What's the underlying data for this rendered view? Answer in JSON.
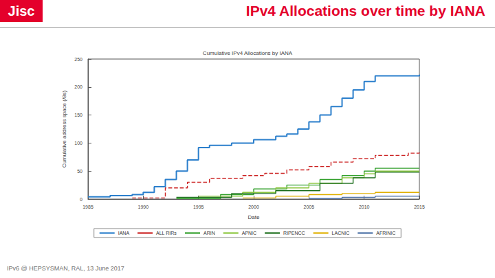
{
  "slide": {
    "logo": "Jisc",
    "title": "IPv4 Allocations over time by IANA",
    "footer": "IPv6 @ HEPSYSMAN, RAL, 13 June 2017"
  },
  "chart_data": {
    "type": "line",
    "title": "Cumulative IPv4 Allocations by IANA",
    "x_label": "Date",
    "y_label": "Cumulative address space (/8s)",
    "xlim": [
      1985,
      2015
    ],
    "xticks": [
      1985,
      1990,
      1995,
      2000,
      2005,
      2010,
      2015
    ],
    "ylim": [
      0,
      250
    ],
    "yticks": [
      0,
      50,
      100,
      150,
      200,
      250
    ],
    "grid": false,
    "legend": "bottom",
    "series": [
      {
        "name": "IANA",
        "color": "#2b7fcc",
        "line_style": "solid",
        "x": [
          1985,
          1987,
          1989,
          1990,
          1991,
          1992,
          1993,
          1994,
          1995,
          1996,
          1998,
          2000,
          2002,
          2003,
          2004,
          2005,
          2006,
          2007,
          2008,
          2009,
          2010,
          2011,
          2015
        ],
        "values": [
          4,
          6,
          8,
          12,
          22,
          35,
          50,
          70,
          92,
          96,
          100,
          106,
          112,
          116,
          125,
          138,
          150,
          165,
          180,
          195,
          210,
          220,
          222
        ]
      },
      {
        "name": "ALL RIRs",
        "color": "#cc2222",
        "line_style": "dashed",
        "x": [
          1989,
          1992,
          1994,
          1996,
          1999,
          2001,
          2003,
          2005,
          2007,
          2009,
          2011,
          2014,
          2015
        ],
        "values": [
          2,
          20,
          30,
          37,
          42,
          46,
          52,
          58,
          66,
          72,
          78,
          82,
          83
        ]
      },
      {
        "name": "ARIN",
        "color": "#33a02c",
        "line_style": "solid",
        "x": [
          1993,
          1997,
          2000,
          2003,
          2006,
          2008,
          2010,
          2011,
          2015
        ],
        "values": [
          1,
          8,
          18,
          25,
          35,
          42,
          50,
          55,
          55
        ]
      },
      {
        "name": "APNIC",
        "color": "#8cc63f",
        "line_style": "solid",
        "x": [
          1995,
          1999,
          2002,
          2005,
          2008,
          2010,
          2011,
          2015
        ],
        "values": [
          5,
          12,
          20,
          28,
          38,
          45,
          50,
          50
        ]
      },
      {
        "name": "RIPENCC",
        "color": "#1b6e1b",
        "line_style": "solid",
        "x": [
          1993,
          1998,
          2002,
          2006,
          2009,
          2011,
          2015
        ],
        "values": [
          3,
          10,
          15,
          28,
          38,
          48,
          48
        ]
      },
      {
        "name": "LACNIC",
        "color": "#e0b000",
        "line_style": "solid",
        "x": [
          1999,
          2002,
          2005,
          2008,
          2011,
          2015
        ],
        "values": [
          2,
          5,
          8,
          10,
          12,
          12
        ]
      },
      {
        "name": "AFRINIC",
        "color": "#4a6fa5",
        "line_style": "solid",
        "x": [
          2005,
          2008,
          2011,
          2015
        ],
        "values": [
          1,
          3,
          5,
          5
        ]
      }
    ]
  }
}
